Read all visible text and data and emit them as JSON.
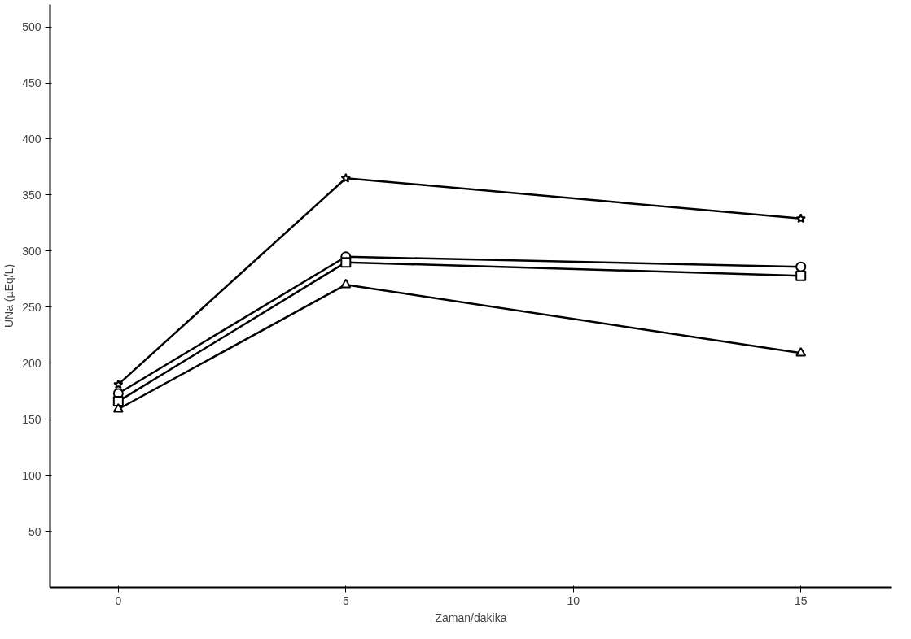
{
  "chart_data": {
    "type": "line",
    "xlabel": "Zaman/dakika",
    "ylabel": "UNa (µEq/L)",
    "xlim": [
      -1.5,
      17
    ],
    "ylim": [
      0,
      520
    ],
    "xticks": [
      0,
      5,
      10,
      15
    ],
    "yticks": [
      50,
      100,
      150,
      200,
      250,
      300,
      350,
      400,
      450,
      500
    ],
    "grid": false,
    "line_style": "solid",
    "series": [
      {
        "color": "#000000",
        "marker": "star",
        "x": [
          0,
          5,
          15
        ],
        "values": [
          181,
          365,
          329
        ]
      },
      {
        "color": "#000000",
        "marker": "circle",
        "x": [
          0,
          5,
          15
        ],
        "values": [
          173,
          295,
          286
        ]
      },
      {
        "color": "#000000",
        "marker": "square",
        "x": [
          0,
          5,
          15
        ],
        "values": [
          166,
          290,
          278
        ]
      },
      {
        "color": "#000000",
        "marker": "triangle",
        "x": [
          0,
          5,
          15
        ],
        "values": [
          159,
          270,
          209
        ]
      }
    ]
  }
}
